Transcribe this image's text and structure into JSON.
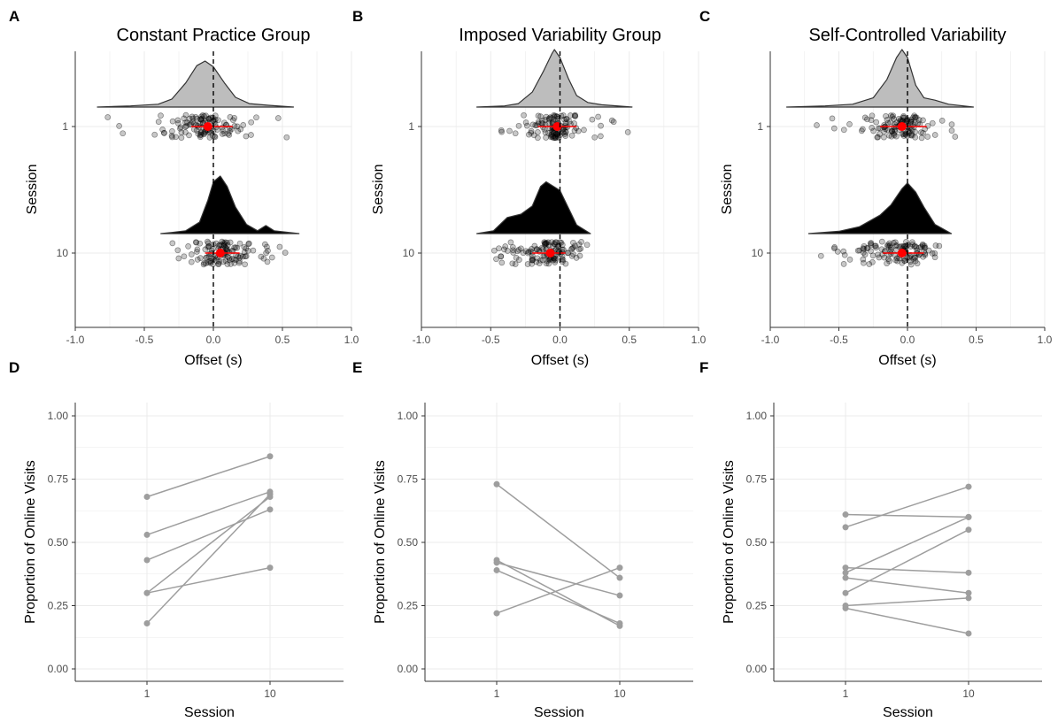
{
  "colors": {
    "grid": "#ebebeb",
    "axis": "#333333",
    "tick_text": "#4d4d4d",
    "density_session1": "#bdbdbd",
    "density_session10": "#000000",
    "point": "#000000",
    "summary": "#ff0000",
    "line": "#9e9e9e"
  },
  "chart_data": [
    {
      "panel": "A",
      "type": "raincloud",
      "title": "Constant Practice Group",
      "xlabel": "Offset (s)",
      "ylabel": "Session",
      "xlim": [
        -1.0,
        1.0
      ],
      "xticks": [
        "-1.0",
        "-0.5",
        "0.0",
        "0.5",
        "1.0"
      ],
      "categories": [
        "1",
        "10"
      ],
      "reference_line_x": 0,
      "series": [
        {
          "session": "1",
          "mean": -0.04,
          "ci": [
            -0.16,
            0.14
          ],
          "range": [
            -0.84,
            0.58
          ],
          "density": [
            [
              -0.84,
              0
            ],
            [
              -0.6,
              0.02
            ],
            [
              -0.4,
              0.05
            ],
            [
              -0.3,
              0.14
            ],
            [
              -0.2,
              0.42
            ],
            [
              -0.12,
              0.72
            ],
            [
              -0.06,
              0.8
            ],
            [
              0.0,
              0.7
            ],
            [
              0.08,
              0.42
            ],
            [
              0.16,
              0.17
            ],
            [
              0.26,
              0.06
            ],
            [
              0.4,
              0.03
            ],
            [
              0.58,
              0
            ]
          ]
        },
        {
          "session": "10",
          "mean": 0.05,
          "ci": [
            -0.06,
            0.19
          ],
          "range": [
            -0.38,
            0.62
          ],
          "density": [
            [
              -0.38,
              0
            ],
            [
              -0.3,
              0.02
            ],
            [
              -0.2,
              0.05
            ],
            [
              -0.1,
              0.2
            ],
            [
              -0.04,
              0.58
            ],
            [
              0.0,
              0.9
            ],
            [
              0.05,
              1.0
            ],
            [
              0.1,
              0.82
            ],
            [
              0.16,
              0.46
            ],
            [
              0.24,
              0.16
            ],
            [
              0.32,
              0.05
            ],
            [
              0.38,
              0.14
            ],
            [
              0.44,
              0.05
            ],
            [
              0.62,
              0
            ]
          ]
        }
      ]
    },
    {
      "panel": "B",
      "type": "raincloud",
      "title": "Imposed Variability Group",
      "xlabel": "Offset (s)",
      "ylabel": "Session",
      "xlim": [
        -1.0,
        1.0
      ],
      "xticks": [
        "-1.0",
        "-0.5",
        "0.0",
        "0.5",
        "1.0"
      ],
      "categories": [
        "1",
        "10"
      ],
      "reference_line_x": 0,
      "series": [
        {
          "session": "1",
          "mean": -0.02,
          "ci": [
            -0.16,
            0.12
          ],
          "range": [
            -0.6,
            0.52
          ],
          "density": [
            [
              -0.6,
              0
            ],
            [
              -0.4,
              0.02
            ],
            [
              -0.3,
              0.06
            ],
            [
              -0.2,
              0.26
            ],
            [
              -0.12,
              0.62
            ],
            [
              -0.06,
              0.92
            ],
            [
              -0.04,
              1.0
            ],
            [
              0.0,
              0.86
            ],
            [
              0.06,
              0.5
            ],
            [
              0.12,
              0.2
            ],
            [
              0.2,
              0.08
            ],
            [
              0.3,
              0.04
            ],
            [
              0.52,
              0
            ]
          ]
        },
        {
          "session": "10",
          "mean": -0.07,
          "ci": [
            -0.2,
            0.04
          ],
          "range": [
            -0.6,
            0.22
          ],
          "density": [
            [
              -0.6,
              0
            ],
            [
              -0.48,
              0.05
            ],
            [
              -0.38,
              0.28
            ],
            [
              -0.28,
              0.34
            ],
            [
              -0.2,
              0.48
            ],
            [
              -0.14,
              0.82
            ],
            [
              -0.1,
              0.9
            ],
            [
              -0.06,
              0.84
            ],
            [
              0.0,
              0.75
            ],
            [
              0.06,
              0.45
            ],
            [
              0.12,
              0.15
            ],
            [
              0.22,
              0
            ]
          ]
        }
      ]
    },
    {
      "panel": "C",
      "type": "raincloud",
      "title": "Self-Controlled Variability",
      "xlabel": "Offset (s)",
      "ylabel": "Session",
      "xlim": [
        -1.0,
        1.0
      ],
      "xticks": [
        "-1.0",
        "-0.5",
        "0.0",
        "0.5",
        "1.0"
      ],
      "categories": [
        "1",
        "10"
      ],
      "reference_line_x": 0,
      "series": [
        {
          "session": "1",
          "mean": -0.04,
          "ci": [
            -0.2,
            0.14
          ],
          "range": [
            -0.88,
            0.48
          ],
          "density": [
            [
              -0.88,
              0
            ],
            [
              -0.6,
              0.02
            ],
            [
              -0.4,
              0.05
            ],
            [
              -0.25,
              0.16
            ],
            [
              -0.15,
              0.48
            ],
            [
              -0.08,
              0.86
            ],
            [
              -0.04,
              1.0
            ],
            [
              0.0,
              0.86
            ],
            [
              0.06,
              0.38
            ],
            [
              0.12,
              0.16
            ],
            [
              0.2,
              0.12
            ],
            [
              0.3,
              0.05
            ],
            [
              0.48,
              0
            ]
          ]
        },
        {
          "session": "10",
          "mean": -0.04,
          "ci": [
            -0.18,
            0.12
          ],
          "range": [
            -0.72,
            0.32
          ],
          "density": [
            [
              -0.72,
              0
            ],
            [
              -0.5,
              0.04
            ],
            [
              -0.35,
              0.12
            ],
            [
              -0.2,
              0.32
            ],
            [
              -0.12,
              0.5
            ],
            [
              -0.04,
              0.78
            ],
            [
              0.0,
              0.88
            ],
            [
              0.06,
              0.72
            ],
            [
              0.12,
              0.46
            ],
            [
              0.2,
              0.16
            ],
            [
              0.32,
              0
            ]
          ]
        }
      ]
    },
    {
      "panel": "D",
      "type": "line",
      "xlabel": "Session",
      "ylabel": "Proportion of Online Visits",
      "categories": [
        "1",
        "10"
      ],
      "ylim": [
        0,
        1.0
      ],
      "yticks": [
        "0.00",
        "0.25",
        "0.50",
        "0.75",
        "1.00"
      ],
      "series": [
        {
          "values": [
            0.68,
            0.84
          ]
        },
        {
          "values": [
            0.53,
            0.7
          ]
        },
        {
          "values": [
            0.43,
            0.63
          ]
        },
        {
          "values": [
            0.3,
            0.68
          ]
        },
        {
          "values": [
            0.3,
            0.4
          ]
        },
        {
          "values": [
            0.18,
            0.69
          ]
        }
      ]
    },
    {
      "panel": "E",
      "type": "line",
      "xlabel": "Session",
      "ylabel": "Proportion of Online Visits",
      "categories": [
        "1",
        "10"
      ],
      "ylim": [
        0,
        1.0
      ],
      "yticks": [
        "0.00",
        "0.25",
        "0.50",
        "0.75",
        "1.00"
      ],
      "series": [
        {
          "values": [
            0.73,
            0.36
          ]
        },
        {
          "values": [
            0.43,
            0.17
          ]
        },
        {
          "values": [
            0.42,
            0.29
          ]
        },
        {
          "values": [
            0.39,
            0.18
          ]
        },
        {
          "values": [
            0.22,
            0.4
          ]
        }
      ]
    },
    {
      "panel": "F",
      "type": "line",
      "xlabel": "Session",
      "ylabel": "Proportion of Online Visits",
      "categories": [
        "1",
        "10"
      ],
      "ylim": [
        0,
        1.0
      ],
      "yticks": [
        "0.00",
        "0.25",
        "0.50",
        "0.75",
        "1.00"
      ],
      "series": [
        {
          "values": [
            0.61,
            0.6
          ]
        },
        {
          "values": [
            0.56,
            0.72
          ]
        },
        {
          "values": [
            0.4,
            0.38
          ]
        },
        {
          "values": [
            0.38,
            0.6
          ]
        },
        {
          "values": [
            0.36,
            0.3
          ]
        },
        {
          "values": [
            0.3,
            0.55
          ]
        },
        {
          "values": [
            0.25,
            0.28
          ]
        },
        {
          "values": [
            0.24,
            0.14
          ]
        }
      ]
    }
  ]
}
